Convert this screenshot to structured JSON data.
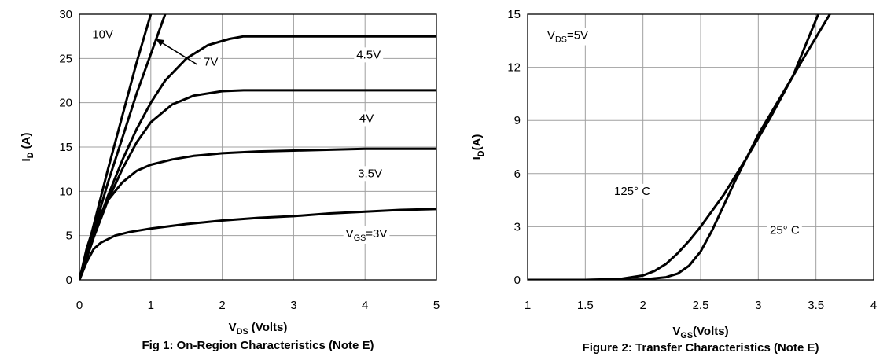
{
  "chart_data": [
    {
      "type": "line",
      "title": "Fig 1: On-Region Characteristics (Note E)",
      "xlabel": {
        "main": "V",
        "sub": "DS",
        "rest": " (Volts)"
      },
      "ylabel": {
        "main": "I",
        "sub": "D",
        "rest": " (A)"
      },
      "xlim": [
        0,
        5
      ],
      "ylim": [
        0,
        30
      ],
      "xticks": [
        0,
        1,
        2,
        3,
        4,
        5
      ],
      "yticks": [
        0,
        5,
        10,
        15,
        20,
        25,
        30
      ],
      "xtick_labels": [
        "0",
        "1",
        "2",
        "3",
        "4",
        "5"
      ],
      "ytick_labels": [
        "0",
        "5",
        "10",
        "15",
        "20",
        "25",
        "30"
      ],
      "grid": true,
      "series": [
        {
          "name": "10V",
          "x": [
            0,
            0.2,
            0.4,
            0.6,
            0.8,
            1.0
          ],
          "y": [
            0,
            6.2,
            12.5,
            18.5,
            24.5,
            30
          ]
        },
        {
          "name": "7V",
          "x": [
            0,
            0.2,
            0.4,
            0.6,
            0.8,
            1.0,
            1.2
          ],
          "y": [
            0,
            5.5,
            11,
            16,
            21,
            25.5,
            30
          ]
        },
        {
          "name": "4.5V",
          "x": [
            0,
            0.2,
            0.4,
            0.6,
            0.8,
            1.0,
            1.2,
            1.5,
            1.8,
            2.1,
            2.3,
            3,
            4,
            5
          ],
          "y": [
            0,
            5,
            9.5,
            13.5,
            17,
            20,
            22.5,
            25,
            26.5,
            27.2,
            27.5,
            27.5,
            27.5,
            27.5
          ]
        },
        {
          "name": "4V",
          "x": [
            0,
            0.2,
            0.4,
            0.6,
            0.8,
            1.0,
            1.3,
            1.6,
            2.0,
            2.3,
            3,
            4,
            5
          ],
          "y": [
            0,
            4.8,
            9,
            12.5,
            15.5,
            17.8,
            19.8,
            20.8,
            21.3,
            21.4,
            21.4,
            21.4,
            21.4
          ]
        },
        {
          "name": "3.5V",
          "x": [
            0,
            0.1,
            0.2,
            0.4,
            0.6,
            0.8,
            1.0,
            1.3,
            1.6,
            2.0,
            2.5,
            3,
            4,
            5
          ],
          "y": [
            0,
            3.5,
            6,
            9,
            11,
            12.3,
            13,
            13.6,
            14,
            14.3,
            14.5,
            14.6,
            14.8,
            14.8
          ]
        },
        {
          "name": "VGS=3V",
          "x": [
            0,
            0.1,
            0.2,
            0.3,
            0.5,
            0.7,
            1.0,
            1.5,
            2,
            2.5,
            3,
            3.5,
            4,
            4.5,
            5
          ],
          "y": [
            0,
            2,
            3.5,
            4.2,
            5,
            5.4,
            5.8,
            6.3,
            6.7,
            7,
            7.2,
            7.5,
            7.7,
            7.9,
            8
          ]
        }
      ],
      "annotations": [
        {
          "text": "10V",
          "x": 0.18,
          "y": 27.3
        },
        {
          "text": "7V",
          "x": 1.74,
          "y": 24.2
        },
        {
          "text": "4.5V",
          "x": 3.88,
          "y": 25.0
        },
        {
          "text": "4V",
          "x": 3.92,
          "y": 17.8
        },
        {
          "text": "3.5V",
          "x": 3.9,
          "y": 11.6
        },
        {
          "text": "V",
          "sub": "GS",
          "rest": "=3V",
          "x": 3.73,
          "y": 4.8
        }
      ],
      "arrow": {
        "from_x": 1.65,
        "from_y": 24.3,
        "to_x": 1.07,
        "to_y": 27.2
      }
    },
    {
      "type": "line",
      "title": "Figure 2: Transfer Characteristics (Note E)",
      "xlabel": {
        "main": "V",
        "sub": "GS",
        "rest": "(Volts)"
      },
      "ylabel": {
        "main": "I",
        "sub": "D",
        "rest": "(A)"
      },
      "xlim": [
        1,
        4
      ],
      "ylim": [
        0,
        15
      ],
      "xticks": [
        1,
        1.5,
        2,
        2.5,
        3,
        3.5,
        4
      ],
      "yticks": [
        0,
        3,
        6,
        9,
        12,
        15
      ],
      "xtick_labels": [
        "1",
        "1.5",
        "2",
        "2.5",
        "3",
        "3.5",
        "4"
      ],
      "ytick_labels": [
        "0",
        "3",
        "6",
        "9",
        "12",
        "15"
      ],
      "grid": true,
      "series": [
        {
          "name": "125° C",
          "x": [
            1,
            1.5,
            1.8,
            2.0,
            2.1,
            2.2,
            2.3,
            2.4,
            2.5,
            2.7,
            2.9,
            3.1,
            3.3,
            3.52
          ],
          "y": [
            0,
            0,
            0.05,
            0.25,
            0.5,
            0.9,
            1.5,
            2.2,
            3.0,
            4.8,
            6.9,
            9.1,
            11.5,
            15
          ]
        },
        {
          "name": "25° C",
          "x": [
            1,
            1.5,
            2.0,
            2.2,
            2.3,
            2.4,
            2.5,
            2.6,
            2.8,
            3.0,
            3.2,
            3.4,
            3.62
          ],
          "y": [
            0,
            0,
            0.02,
            0.15,
            0.35,
            0.8,
            1.6,
            2.8,
            5.6,
            8.2,
            10.4,
            12.6,
            15
          ]
        }
      ],
      "annotations": [
        {
          "text": "V",
          "sub": "DS",
          "rest": "=5V",
          "x": 1.17,
          "y": 13.6
        },
        {
          "text": "125° C",
          "x": 1.75,
          "y": 4.8
        },
        {
          "text": "25° C",
          "x": 3.1,
          "y": 2.6
        }
      ]
    }
  ]
}
